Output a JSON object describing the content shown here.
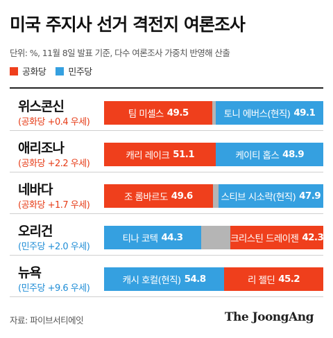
{
  "title": "미국 주지사 선거 격전지 여론조사",
  "subtitle": "단위: %, 11월 8일 발표 기준, 다수 여론조사 가중치 반영해 산출",
  "legend": [
    {
      "label": "공화당",
      "color": "#ef3f1c"
    },
    {
      "label": "민주당",
      "color": "#35a0e0"
    }
  ],
  "colors": {
    "rep": "#ef3f1c",
    "dem": "#35a0e0",
    "undecided": "#b5b5b5"
  },
  "source": "자료: 파이브서티에잇",
  "brand": "The JoongAng",
  "chart_data": {
    "type": "bar",
    "orientation": "horizontal-stacked",
    "xlim": [
      0,
      100
    ],
    "rows": [
      {
        "state": "위스콘신",
        "margin": "(공화당 +0.4 우세)",
        "leader": "rep",
        "left": {
          "party": "rep",
          "name": "팀 미셸스",
          "value": 49.5
        },
        "right": {
          "party": "dem",
          "name": "토니 에버스(현직)",
          "value": 49.1
        }
      },
      {
        "state": "애리조나",
        "margin": "(공화당 +2.2 우세)",
        "leader": "rep",
        "left": {
          "party": "rep",
          "name": "캐리 레이크",
          "value": 51.1
        },
        "right": {
          "party": "dem",
          "name": "케이티 홉스",
          "value": 48.9
        }
      },
      {
        "state": "네바다",
        "margin": "(공화당 +1.7 우세)",
        "leader": "rep",
        "left": {
          "party": "rep",
          "name": "조 롬바르도",
          "value": 49.6
        },
        "right": {
          "party": "dem",
          "name": "스티브 시소락(현직)",
          "value": 47.9
        }
      },
      {
        "state": "오리건",
        "margin": "(민주당 +2.0 우세)",
        "leader": "dem",
        "left": {
          "party": "dem",
          "name": "티나 코텍",
          "value": 44.3
        },
        "right": {
          "party": "rep",
          "name": "크리스틴 드레이젠",
          "value": 42.3
        }
      },
      {
        "state": "뉴욕",
        "margin": "(민주당 +9.6 우세)",
        "leader": "dem",
        "left": {
          "party": "dem",
          "name": "캐시 호컬(현직)",
          "value": 54.8
        },
        "right": {
          "party": "rep",
          "name": "리 젤딘",
          "value": 45.2
        }
      }
    ]
  }
}
